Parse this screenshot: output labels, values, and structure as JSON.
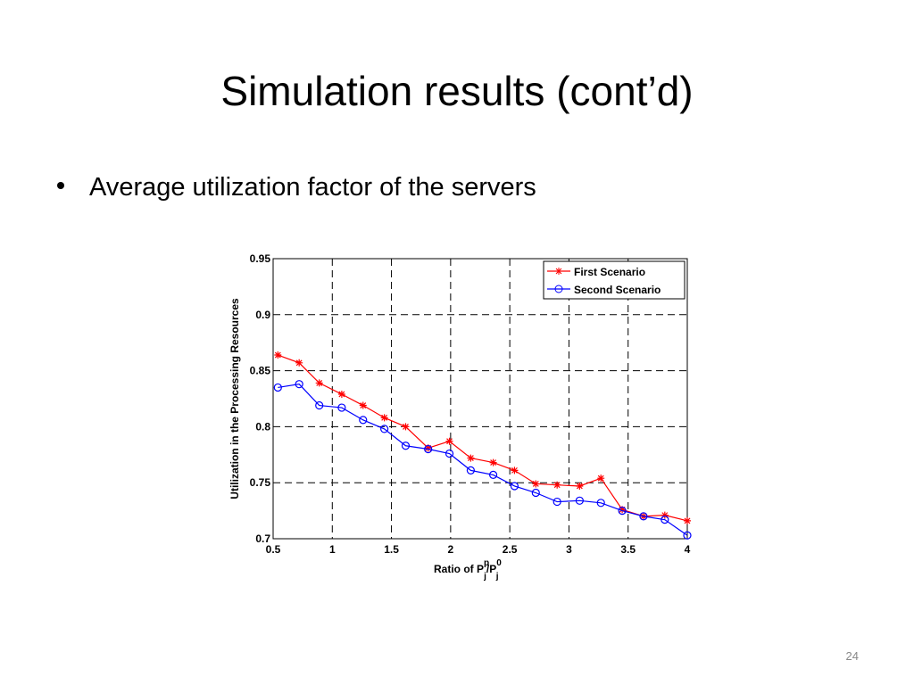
{
  "slide": {
    "title": "Simulation results (cont’d)",
    "bullets": [
      "Average utilization factor of the servers"
    ],
    "page_number": "24"
  },
  "chart_data": {
    "type": "line",
    "ylabel": "Utilization in the Processing Resources",
    "xlabel": [
      "Ratio of P",
      "p",
      "j",
      "/P",
      "0",
      "j"
    ],
    "x": [
      0.54,
      0.72,
      0.89,
      1.08,
      1.26,
      1.44,
      1.62,
      1.81,
      1.99,
      2.17,
      2.36,
      2.54,
      2.72,
      2.9,
      3.09,
      3.27,
      3.45,
      3.63,
      3.81,
      4.0
    ],
    "series": [
      {
        "name": "First Scenario",
        "color": "#ff0000",
        "marker": "asterisk",
        "values": [
          0.864,
          0.857,
          0.839,
          0.829,
          0.819,
          0.808,
          0.8,
          0.781,
          0.787,
          0.772,
          0.768,
          0.761,
          0.749,
          0.748,
          0.747,
          0.754,
          0.726,
          0.72,
          0.721,
          0.716
        ]
      },
      {
        "name": "Second Scenario",
        "color": "#0000ff",
        "marker": "circle",
        "values": [
          0.835,
          0.838,
          0.819,
          0.817,
          0.806,
          0.798,
          0.783,
          0.78,
          0.776,
          0.761,
          0.757,
          0.747,
          0.741,
          0.733,
          0.734,
          0.732,
          0.725,
          0.72,
          0.717,
          0.703
        ]
      }
    ],
    "xlim": [
      0.5,
      4
    ],
    "xticks": [
      0.5,
      1,
      1.5,
      2,
      2.5,
      3,
      3.5,
      4
    ],
    "ylim": [
      0.7,
      0.95
    ],
    "yticks": [
      0.7,
      0.75,
      0.8,
      0.85,
      0.9,
      0.95
    ],
    "grid": true,
    "legend": "northeast"
  }
}
